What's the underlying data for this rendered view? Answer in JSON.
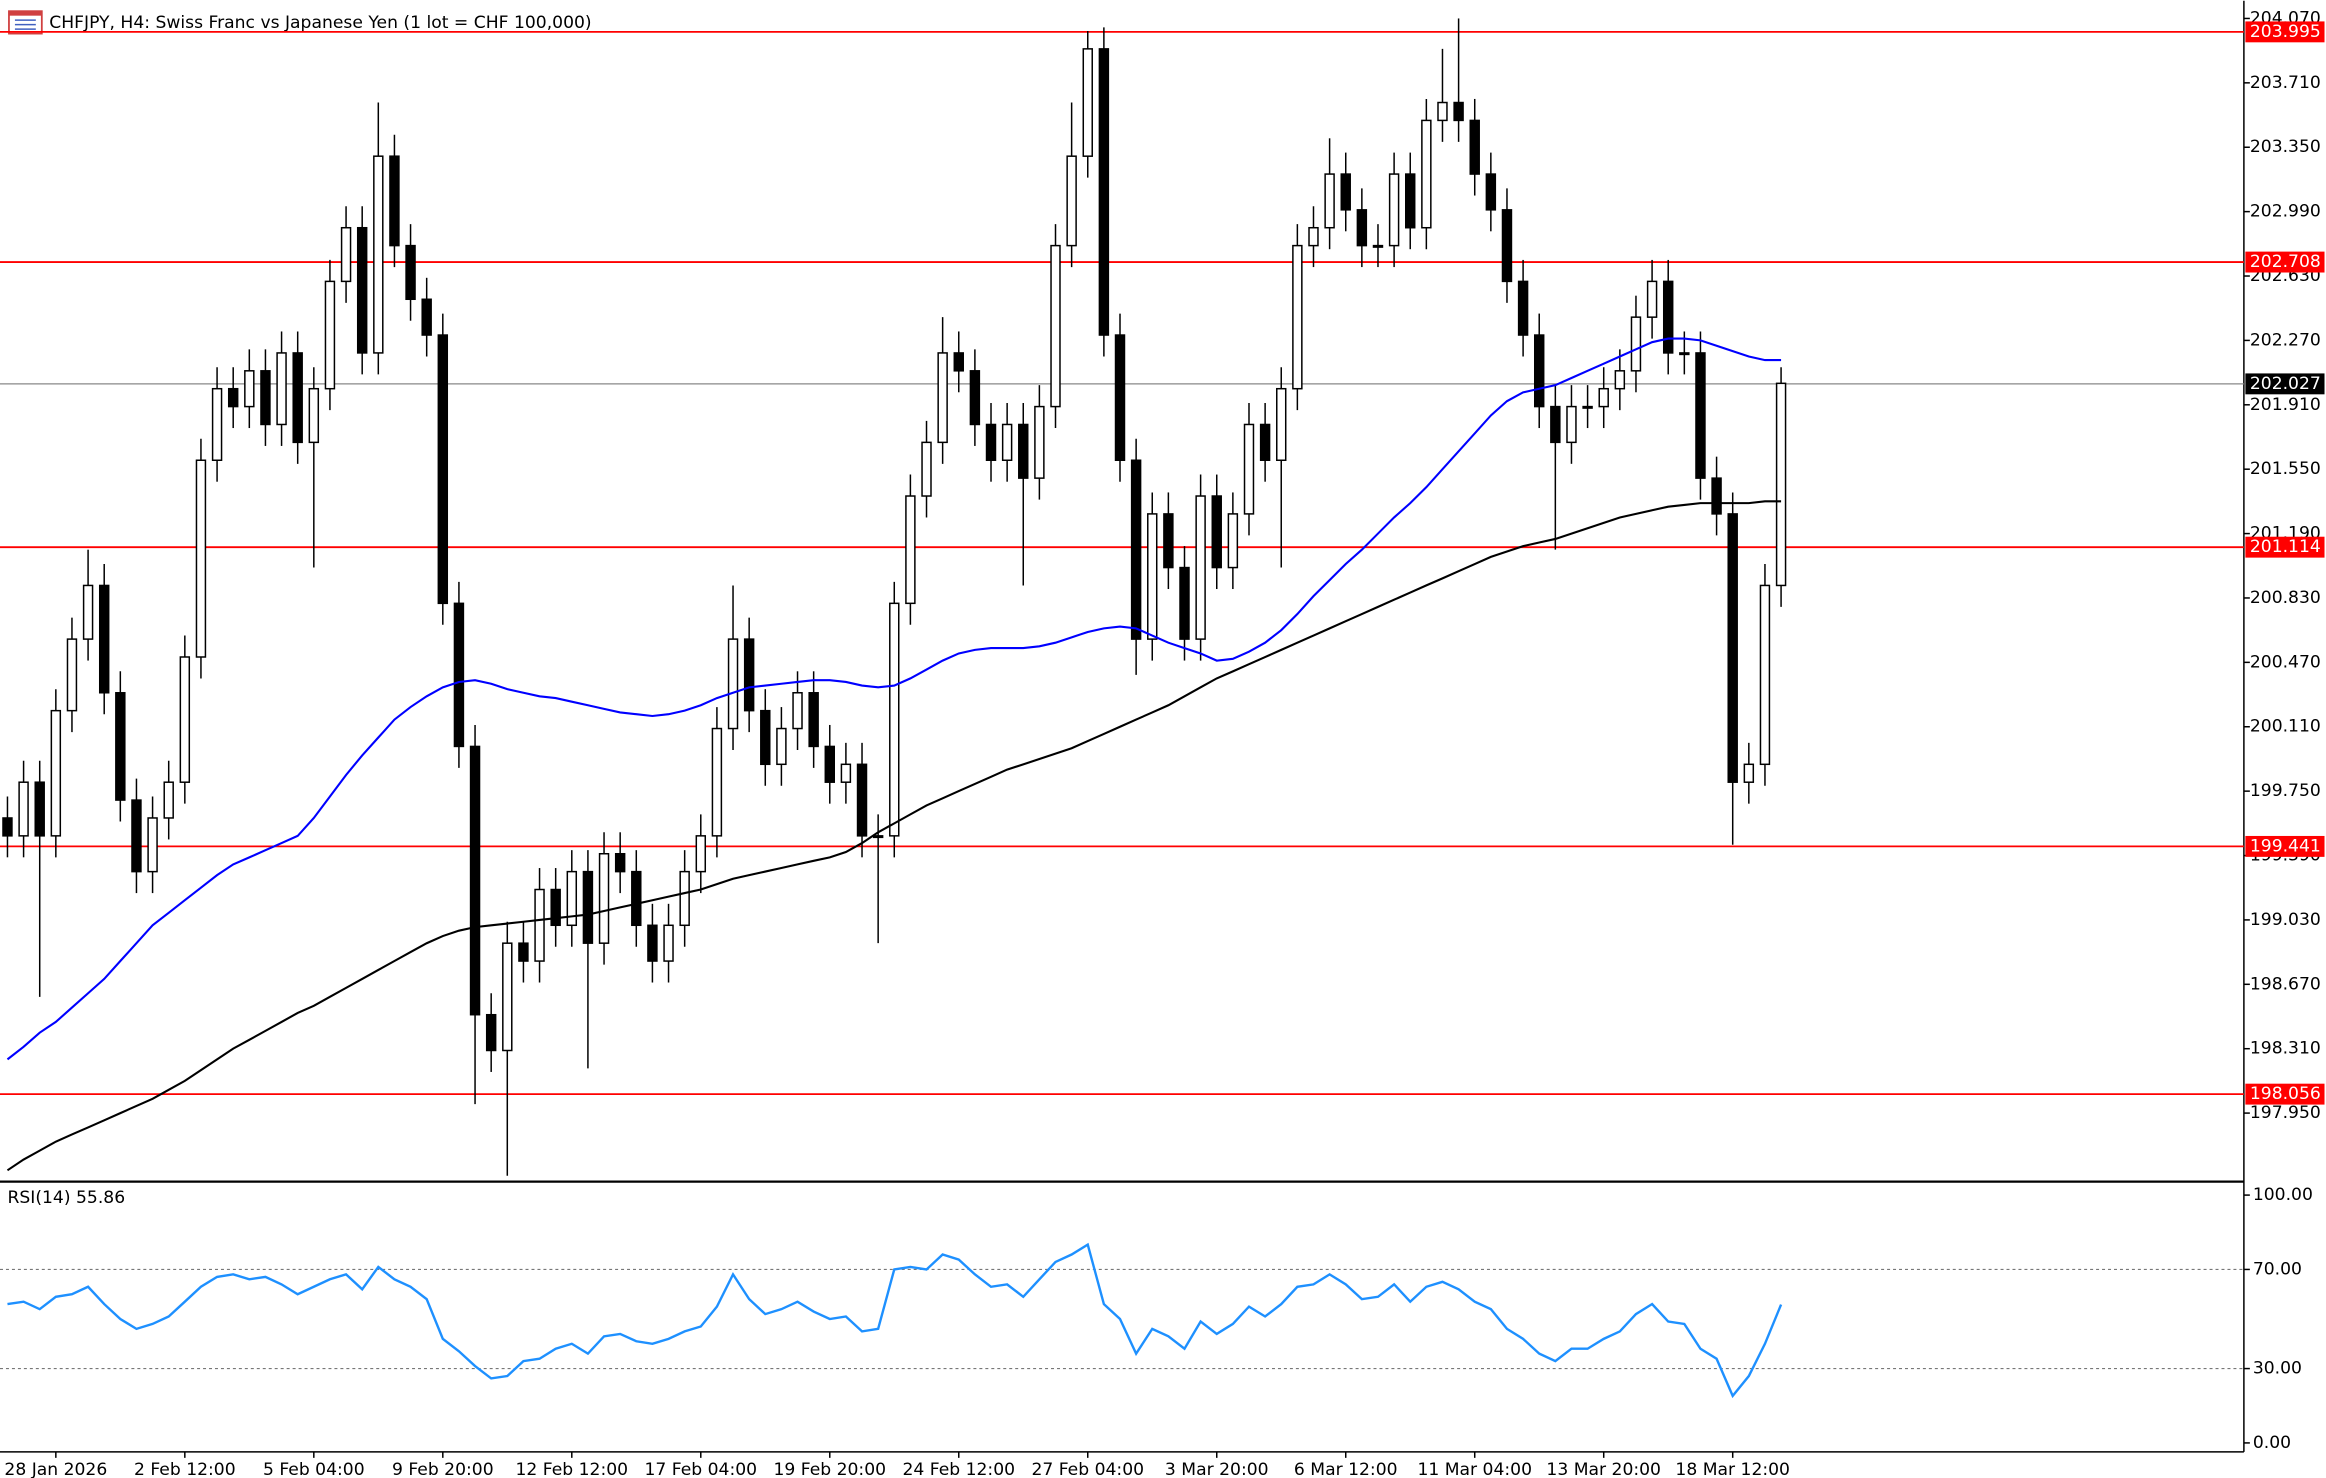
{
  "chart_data": {
    "type": "candlestick",
    "title": "CHFJPY, H4:  Swiss Franc vs Japanese Yen (1 lot = CHF 100,000)",
    "categories": [
      null,
      null,
      null,
      "28 Jan 2026",
      null,
      null,
      null,
      null,
      null,
      null,
      null,
      "2 Feb 12:00",
      null,
      null,
      null,
      null,
      null,
      null,
      null,
      "5 Feb 04:00",
      null,
      null,
      null,
      null,
      null,
      null,
      null,
      "9 Feb 20:00",
      null,
      null,
      null,
      null,
      null,
      null,
      null,
      "12 Feb 12:00",
      null,
      null,
      null,
      null,
      null,
      null,
      null,
      "17 Feb 04:00",
      null,
      null,
      null,
      null,
      null,
      null,
      null,
      "19 Feb 20:00",
      null,
      null,
      null,
      null,
      null,
      null,
      null,
      "24 Feb 12:00",
      null,
      null,
      null,
      null,
      null,
      null,
      null,
      "27 Feb 04:00",
      null,
      null,
      null,
      null,
      null,
      null,
      null,
      "3 Mar 20:00",
      null,
      null,
      null,
      null,
      null,
      null,
      null,
      "6 Mar 12:00",
      null,
      null,
      null,
      null,
      null,
      null,
      null,
      "11 Mar 04:00",
      null,
      null,
      null,
      null,
      null,
      null,
      null,
      "13 Mar 20:00",
      null,
      null,
      null,
      null,
      null,
      null,
      null,
      "18 Mar 12:00",
      null,
      null,
      null
    ],
    "open": [
      199.6,
      199.5,
      199.8,
      199.5,
      200.2,
      200.6,
      200.9,
      200.3,
      199.7,
      199.3,
      199.6,
      199.8,
      200.5,
      201.6,
      202.0,
      201.9,
      202.1,
      201.8,
      202.2,
      201.7,
      202.0,
      202.6,
      202.9,
      202.2,
      203.3,
      202.8,
      202.5,
      202.3,
      200.8,
      200.0,
      198.5,
      198.3,
      198.9,
      198.8,
      199.2,
      199.0,
      199.3,
      198.9,
      199.4,
      199.3,
      199.0,
      198.8,
      199.0,
      199.3,
      199.5,
      200.1,
      200.6,
      200.2,
      199.9,
      200.1,
      200.3,
      200.0,
      199.8,
      199.9,
      199.5,
      199.5,
      200.8,
      201.4,
      201.7,
      202.2,
      202.1,
      201.8,
      201.6,
      201.8,
      201.5,
      201.9,
      202.8,
      203.3,
      203.9,
      202.3,
      201.6,
      200.6,
      201.3,
      201.0,
      200.6,
      201.4,
      201.0,
      201.3,
      201.8,
      201.6,
      202.0,
      202.8,
      202.9,
      203.2,
      203.0,
      202.8,
      202.8,
      203.2,
      202.9,
      203.5,
      203.6,
      203.5,
      203.2,
      203.0,
      202.6,
      202.3,
      201.9,
      201.7,
      201.9,
      201.9,
      202.0,
      202.1,
      202.4,
      202.6,
      202.2,
      202.2,
      201.5,
      201.3,
      199.8,
      199.9,
      200.9
    ],
    "high": [
      199.72,
      199.92,
      199.92,
      200.32,
      200.72,
      201.1,
      201.02,
      200.42,
      199.82,
      199.72,
      199.92,
      200.62,
      201.72,
      202.12,
      202.12,
      202.22,
      202.22,
      202.32,
      202.32,
      202.12,
      202.72,
      203.02,
      203.02,
      203.6,
      203.42,
      202.92,
      202.62,
      202.42,
      200.92,
      200.12,
      198.62,
      199.02,
      199.02,
      199.32,
      199.32,
      199.42,
      199.42,
      199.52,
      199.52,
      199.42,
      199.12,
      199.12,
      199.42,
      199.62,
      200.22,
      200.9,
      200.72,
      200.32,
      200.22,
      200.42,
      200.42,
      200.12,
      200.02,
      200.02,
      199.62,
      200.92,
      201.52,
      201.82,
      202.4,
      202.32,
      202.22,
      201.92,
      201.92,
      201.92,
      202.02,
      202.92,
      203.6,
      204.0,
      204.02,
      202.42,
      201.72,
      201.42,
      201.42,
      201.12,
      201.52,
      201.52,
      201.42,
      201.92,
      201.92,
      202.12,
      202.92,
      203.02,
      203.4,
      203.32,
      203.12,
      202.92,
      203.32,
      203.32,
      203.62,
      203.9,
      204.07,
      203.62,
      203.32,
      203.12,
      202.72,
      202.42,
      202.02,
      202.02,
      202.02,
      202.12,
      202.22,
      202.52,
      202.72,
      202.72,
      202.32,
      202.32,
      201.62,
      201.42,
      200.02,
      201.02,
      202.12
    ],
    "low": [
      199.38,
      199.38,
      198.6,
      199.38,
      200.08,
      200.48,
      200.18,
      199.58,
      199.18,
      199.18,
      199.48,
      199.68,
      200.38,
      201.48,
      201.78,
      201.78,
      201.68,
      201.68,
      201.58,
      201.0,
      201.88,
      202.48,
      202.08,
      202.08,
      202.68,
      202.38,
      202.18,
      200.68,
      199.88,
      198.0,
      198.18,
      197.6,
      198.68,
      198.68,
      198.88,
      198.88,
      198.2,
      198.78,
      199.18,
      198.88,
      198.68,
      198.68,
      198.88,
      199.18,
      199.38,
      199.98,
      200.08,
      199.78,
      199.78,
      199.98,
      199.88,
      199.68,
      199.68,
      199.38,
      198.9,
      199.38,
      200.68,
      201.28,
      201.58,
      201.98,
      201.68,
      201.48,
      201.48,
      200.9,
      201.38,
      201.78,
      202.68,
      203.18,
      202.18,
      201.48,
      200.4,
      200.48,
      200.88,
      200.48,
      200.48,
      200.88,
      200.88,
      201.18,
      201.48,
      201.0,
      201.88,
      202.68,
      202.78,
      202.88,
      202.68,
      202.68,
      202.68,
      202.78,
      202.78,
      203.38,
      203.38,
      203.08,
      202.88,
      202.48,
      202.18,
      201.78,
      201.1,
      201.58,
      201.78,
      201.78,
      201.88,
      201.98,
      202.28,
      202.08,
      202.08,
      201.38,
      201.18,
      199.45,
      199.68,
      199.78,
      200.78
    ],
    "close": [
      199.5,
      199.8,
      199.5,
      200.2,
      200.6,
      200.9,
      200.3,
      199.7,
      199.3,
      199.6,
      199.8,
      200.5,
      201.6,
      202.0,
      201.9,
      202.1,
      201.8,
      202.2,
      201.7,
      202.0,
      202.6,
      202.9,
      202.2,
      203.3,
      202.8,
      202.5,
      202.3,
      200.8,
      200.0,
      198.5,
      198.3,
      198.9,
      198.8,
      199.2,
      199.0,
      199.3,
      198.9,
      199.4,
      199.3,
      199.0,
      198.8,
      199.0,
      199.3,
      199.5,
      200.1,
      200.6,
      200.2,
      199.9,
      200.1,
      200.3,
      200.0,
      199.8,
      199.9,
      199.5,
      199.5,
      200.8,
      201.4,
      201.7,
      202.2,
      202.1,
      201.8,
      201.6,
      201.8,
      201.5,
      201.9,
      202.8,
      203.3,
      203.9,
      202.3,
      201.6,
      200.6,
      201.3,
      201.0,
      200.6,
      201.4,
      201.0,
      201.3,
      201.8,
      201.6,
      202.0,
      202.8,
      202.9,
      203.2,
      203.0,
      202.8,
      202.8,
      203.2,
      202.9,
      203.5,
      203.6,
      203.5,
      203.2,
      203.0,
      202.6,
      202.3,
      201.9,
      201.7,
      201.9,
      201.9,
      202.0,
      202.1,
      202.4,
      202.6,
      202.2,
      202.2,
      201.5,
      201.3,
      199.8,
      199.9,
      200.9,
      202.03
    ],
    "series": [
      {
        "color": "#0000ff",
        "values": [
          198.25,
          198.32,
          198.4,
          198.46,
          198.54,
          198.62,
          198.7,
          198.8,
          198.9,
          199.0,
          199.07,
          199.14,
          199.21,
          199.28,
          199.34,
          199.38,
          199.42,
          199.46,
          199.5,
          199.6,
          199.72,
          199.84,
          199.95,
          200.05,
          200.15,
          200.22,
          200.28,
          200.33,
          200.36,
          200.37,
          200.35,
          200.32,
          200.3,
          200.28,
          200.27,
          200.25,
          200.23,
          200.21,
          200.19,
          200.18,
          200.17,
          200.18,
          200.2,
          200.23,
          200.27,
          200.3,
          200.33,
          200.34,
          200.35,
          200.36,
          200.37,
          200.37,
          200.36,
          200.34,
          200.33,
          200.34,
          200.38,
          200.43,
          200.48,
          200.52,
          200.54,
          200.55,
          200.55,
          200.55,
          200.56,
          200.58,
          200.61,
          200.64,
          200.66,
          200.67,
          200.66,
          200.62,
          200.58,
          200.55,
          200.52,
          200.48,
          200.49,
          200.53,
          200.58,
          200.65,
          200.74,
          200.84,
          200.93,
          201.02,
          201.1,
          201.19,
          201.28,
          201.36,
          201.45,
          201.55,
          201.65,
          201.75,
          201.85,
          201.93,
          201.98,
          202.0,
          202.02,
          202.06,
          202.1,
          202.14,
          202.18,
          202.22,
          202.26,
          202.28,
          202.28,
          202.27,
          202.24,
          202.21,
          202.18,
          202.16,
          202.16
        ]
      },
      {
        "color": "#000000",
        "values": [
          197.63,
          197.69,
          197.74,
          197.79,
          197.83,
          197.87,
          197.91,
          197.95,
          197.99,
          198.03,
          198.08,
          198.13,
          198.19,
          198.25,
          198.31,
          198.36,
          198.41,
          198.46,
          198.51,
          198.55,
          198.6,
          198.65,
          198.7,
          198.75,
          198.8,
          198.85,
          198.9,
          198.94,
          198.97,
          198.99,
          199.0,
          199.01,
          199.02,
          199.03,
          199.04,
          199.05,
          199.06,
          199.08,
          199.1,
          199.12,
          199.14,
          199.16,
          199.18,
          199.2,
          199.23,
          199.26,
          199.28,
          199.3,
          199.32,
          199.34,
          199.36,
          199.38,
          199.41,
          199.46,
          199.52,
          199.57,
          199.62,
          199.67,
          199.71,
          199.75,
          199.79,
          199.83,
          199.87,
          199.9,
          199.93,
          199.96,
          199.99,
          200.03,
          200.07,
          200.11,
          200.15,
          200.19,
          200.23,
          200.28,
          200.33,
          200.38,
          200.42,
          200.46,
          200.5,
          200.54,
          200.58,
          200.62,
          200.66,
          200.7,
          200.74,
          200.78,
          200.82,
          200.86,
          200.9,
          200.94,
          200.98,
          201.02,
          201.06,
          201.09,
          201.12,
          201.14,
          201.16,
          201.19,
          201.22,
          201.25,
          201.28,
          201.3,
          201.32,
          201.34,
          201.35,
          201.36,
          201.36,
          201.36,
          201.36,
          201.37,
          201.37
        ]
      }
    ],
    "levels": [
      203.995,
      202.708,
      201.114,
      199.441,
      198.056
    ],
    "level_color": "#ff0000",
    "last_price": 202.027,
    "ylim": [
      197.575,
      204.144
    ],
    "yticks": [
      {
        "value": 204.07,
        "label": "204.070"
      },
      {
        "value": 203.71,
        "label": "203.710"
      },
      {
        "value": 203.35,
        "label": "203.350"
      },
      {
        "value": 202.99,
        "label": "202.990"
      },
      {
        "value": 202.63,
        "label": "202.630"
      },
      {
        "value": 202.27,
        "label": "202.270"
      },
      {
        "value": 201.91,
        "label": "201.910"
      },
      {
        "value": 201.55,
        "label": "201.550"
      },
      {
        "value": 201.19,
        "label": "201.190"
      },
      {
        "value": 200.83,
        "label": "200.830"
      },
      {
        "value": 200.47,
        "label": "200.470"
      },
      {
        "value": 200.11,
        "label": "200.110"
      },
      {
        "value": 199.75,
        "label": "199.750"
      },
      {
        "value": 199.39,
        "label": "199.390"
      },
      {
        "value": 199.03,
        "label": "199.030"
      },
      {
        "value": 198.67,
        "label": "198.670"
      },
      {
        "value": 198.31,
        "label": "198.310"
      },
      {
        "value": 197.95,
        "label": "197.950"
      }
    ],
    "rsi": {
      "type": "line",
      "label": "RSI(14) 55.86",
      "color": "#1e90ff",
      "ylim": [
        0,
        100
      ],
      "yticks": [
        {
          "value": 100,
          "label": "100.00"
        },
        {
          "value": 70,
          "label": "70.00"
        },
        {
          "value": 30,
          "label": "30.00"
        },
        {
          "value": 0,
          "label": "0.00"
        }
      ],
      "values": [
        56,
        57,
        54,
        59,
        60,
        63,
        56,
        50,
        46,
        48,
        51,
        57,
        63,
        67,
        68,
        66,
        67,
        64,
        60,
        63,
        66,
        68,
        62,
        71,
        66,
        63,
        58,
        42,
        37,
        31,
        26,
        27,
        33,
        34,
        38,
        40,
        36,
        43,
        44,
        41,
        40,
        42,
        45,
        47,
        55,
        68,
        58,
        52,
        54,
        57,
        53,
        50,
        51,
        45,
        46,
        70,
        71,
        70,
        76,
        74,
        68,
        63,
        64,
        59,
        66,
        73,
        76,
        80,
        56,
        50,
        36,
        46,
        43,
        38,
        49,
        44,
        48,
        55,
        51,
        56,
        63,
        64,
        68,
        64,
        58,
        59,
        64,
        57,
        63,
        65,
        62,
        57,
        54,
        46,
        42,
        36,
        33,
        38,
        38,
        42,
        45,
        52,
        56,
        49,
        48,
        38,
        34,
        19,
        27,
        40,
        55.86
      ]
    }
  }
}
